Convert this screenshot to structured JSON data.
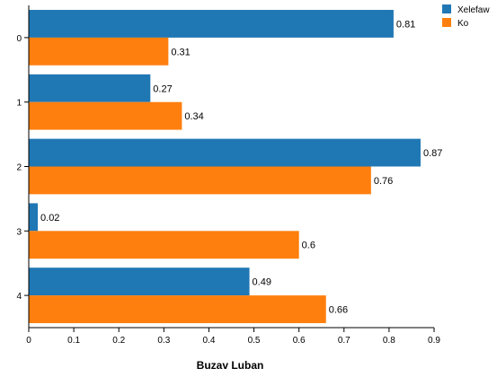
{
  "chart_data": {
    "type": "bar",
    "orientation": "horizontal",
    "title": "",
    "xlabel": "Buzav Luban",
    "ylabel": "",
    "categories": [
      "0",
      "1",
      "2",
      "3",
      "4"
    ],
    "series": [
      {
        "name": "Xelefaw",
        "color": "#1f77b4",
        "values": [
          0.81,
          0.27,
          0.87,
          0.02,
          0.49
        ],
        "labels": [
          "0.81",
          "0.27",
          "0.87",
          "0.02",
          "0.49"
        ]
      },
      {
        "name": "Ko",
        "color": "#ff7f0e",
        "values": [
          0.31,
          0.34,
          0.76,
          0.6,
          0.66
        ],
        "labels": [
          "0.31",
          "0.34",
          "0.76",
          "0.6",
          "0.66"
        ]
      }
    ],
    "xlim": [
      0,
      0.9
    ],
    "xticks": [
      "0",
      "0.1",
      "0.2",
      "0.3",
      "0.4",
      "0.5",
      "0.6",
      "0.7",
      "0.8",
      "0.9"
    ],
    "grid": false,
    "legend_position": "top-right"
  }
}
